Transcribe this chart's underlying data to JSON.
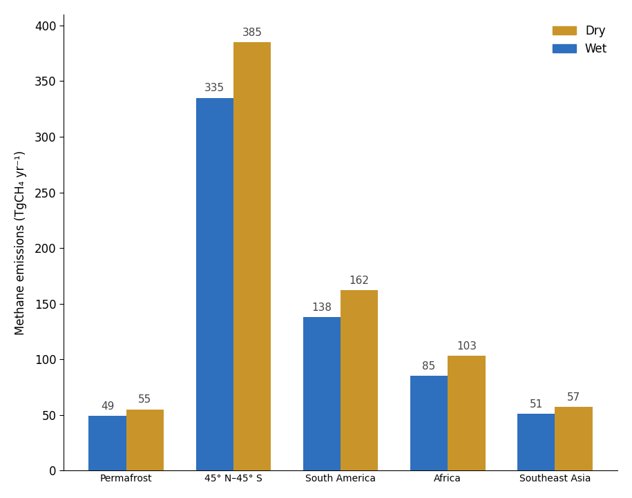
{
  "categories": [
    "Permafrost",
    "45° N–45° S",
    "South America",
    "Africa",
    "Southeast Asia"
  ],
  "wet_values": [
    49,
    335,
    138,
    85,
    51
  ],
  "dry_values": [
    55,
    385,
    162,
    103,
    57
  ],
  "wet_color": "#2E6FBE",
  "dry_color": "#C9952A",
  "ylabel": "Methane emissions (TgCH₄ yr⁻¹)",
  "ylim": [
    0,
    410
  ],
  "yticks": [
    0,
    50,
    100,
    150,
    200,
    250,
    300,
    350,
    400
  ],
  "bar_width": 0.35,
  "legend_labels": [
    "Dry",
    "Wet"
  ],
  "label_fontsize": 12,
  "tick_fontsize": 12,
  "annotation_fontsize": 11,
  "background_color": "#ffffff"
}
